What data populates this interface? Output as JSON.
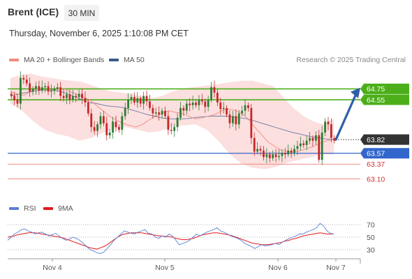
{
  "header": {
    "instrument": "Brent (ICE)",
    "timeframe": "30 MIN",
    "timestamp": "Thursday, November 6, 2025 1:10:08 PM CET"
  },
  "legend": {
    "ma20": {
      "label": "MA 20 + Bollinger Bands",
      "color": "#f28b82"
    },
    "ma50": {
      "label": "MA 50",
      "color": "#3a5a8c"
    },
    "rsi": {
      "label": "RSI",
      "color": "#5b7fd6"
    },
    "ma9": {
      "label": "9MA",
      "color": "#e31a1c"
    }
  },
  "credit": "Research © 2025 Trading Central",
  "chart_data": [
    {
      "type": "candlestick",
      "ylim": [
        62.8,
        65.1
      ],
      "x_ticks": [
        "Nov 4",
        "Nov 5",
        "Nov 6",
        "Nov 7"
      ],
      "colors": {
        "up": "#2e7d32",
        "down": "#c62828",
        "band_fill": "#fcd9d9",
        "resistance": "#4caf1a",
        "support": "#3366cc",
        "target": "#f28b82",
        "arrow": "#2f5fa8"
      },
      "last_price": {
        "value": "63.82",
        "color": "#333333"
      },
      "levels": [
        {
          "value": "64.75",
          "kind": "resistance"
        },
        {
          "value": "64.55",
          "kind": "resistance"
        },
        {
          "value": "63.57",
          "kind": "pivot"
        },
        {
          "value": "63.37",
          "kind": "target"
        },
        {
          "value": "63.10",
          "kind": "target"
        }
      ],
      "candles_close": [
        64.62,
        64.55,
        64.48,
        64.95,
        64.92,
        64.85,
        64.7,
        64.75,
        64.8,
        64.72,
        64.78,
        64.8,
        64.7,
        64.72,
        64.75,
        64.78,
        64.62,
        64.58,
        64.65,
        64.55,
        64.62,
        64.6,
        64.66,
        64.58,
        64.5,
        64.3,
        64.05,
        63.98,
        64.1,
        64.25,
        64.12,
        63.9,
        63.95,
        64.15,
        64.05,
        64.0,
        64.25,
        64.4,
        64.55,
        64.6,
        64.5,
        64.58,
        64.48,
        64.62,
        64.52,
        64.4,
        64.3,
        64.32,
        64.28,
        64.35,
        64.25,
        64.0,
        63.98,
        64.05,
        64.22,
        64.4,
        64.35,
        64.48,
        64.45,
        64.5,
        64.45,
        64.55,
        64.52,
        64.42,
        64.55,
        64.78,
        64.68,
        64.5,
        64.38,
        64.4,
        64.28,
        64.12,
        64.25,
        64.1,
        64.3,
        64.35,
        64.45,
        64.4,
        63.85,
        63.6,
        63.65,
        63.62,
        63.5,
        63.55,
        63.48,
        63.55,
        63.5,
        63.52,
        63.58,
        63.55,
        63.62,
        63.58,
        63.65,
        63.7,
        63.75,
        63.72,
        63.8,
        63.85,
        63.8,
        63.9,
        63.45,
        63.95,
        64.15,
        64.1,
        63.85,
        63.8
      ],
      "ma20": [
        64.7,
        64.66,
        64.63,
        64.7,
        64.75,
        64.73,
        64.72,
        64.74,
        64.76,
        64.7,
        64.65,
        64.6,
        64.55,
        64.45,
        64.35,
        64.25,
        64.18,
        64.12,
        64.08,
        64.05,
        64.1,
        64.18,
        64.25,
        64.3,
        64.35,
        64.32,
        64.3,
        64.25,
        64.2,
        64.22,
        64.25,
        64.28,
        64.35,
        64.38,
        64.36,
        64.3,
        64.2,
        64.05,
        63.92,
        63.78,
        63.7,
        63.63,
        63.6,
        63.6,
        63.62,
        63.66,
        63.7,
        63.76,
        63.8,
        63.82
      ],
      "ma50": [
        64.62,
        64.65,
        64.68,
        64.7,
        64.72,
        64.73,
        64.72,
        64.7,
        64.66,
        64.6,
        64.55,
        64.5,
        64.48,
        64.45,
        64.43,
        64.42,
        64.4,
        64.36,
        64.32,
        64.28,
        64.25,
        64.22,
        64.2,
        64.2,
        64.2,
        64.21,
        64.23,
        64.24,
        64.25,
        64.25,
        64.25,
        64.24,
        64.22,
        64.2,
        64.16,
        64.12,
        64.08,
        64.04,
        64.0,
        63.96,
        63.93,
        63.9,
        63.87,
        63.85,
        63.83,
        63.82
      ],
      "bb_upper": [
        64.95,
        65.0,
        65.03,
        64.98,
        64.95,
        64.92,
        64.9,
        64.88,
        64.82,
        64.75,
        64.7,
        64.68,
        64.65,
        64.6,
        64.58,
        64.62,
        64.7,
        64.75,
        64.78,
        64.8,
        64.82,
        64.85,
        64.88,
        64.9,
        64.9,
        64.85,
        64.8,
        64.6,
        64.4,
        64.25,
        64.15,
        64.1,
        64.2
      ],
      "bb_lower": [
        64.48,
        64.35,
        64.15,
        64.0,
        63.92,
        63.88,
        63.8,
        63.85,
        63.95,
        64.02,
        64.05,
        64.0,
        63.95,
        63.98,
        64.05,
        64.08,
        64.1,
        64.0,
        63.8,
        63.55,
        63.38,
        63.3,
        63.28,
        63.32,
        63.4,
        63.45,
        63.5,
        63.55,
        63.55
      ]
    },
    {
      "type": "line",
      "name": "RSI",
      "y_ticks": [
        "70",
        "50",
        "30"
      ],
      "ylim": [
        20,
        80
      ],
      "rsi": [
        45,
        50,
        55,
        58,
        62,
        63,
        60,
        58,
        55,
        57,
        58,
        55,
        52,
        54,
        56,
        52,
        48,
        45,
        47,
        50,
        48,
        45,
        40,
        35,
        30,
        28,
        25,
        24,
        26,
        32,
        38,
        45,
        50,
        55,
        60,
        58,
        56,
        55,
        58,
        60,
        62,
        56,
        55,
        50,
        48,
        52,
        50,
        55,
        52,
        45,
        38,
        40,
        42,
        45,
        50,
        55,
        52,
        55,
        58,
        60,
        62,
        65,
        60,
        58,
        55,
        52,
        50,
        48,
        45,
        40,
        38,
        35,
        32,
        35,
        38,
        36,
        37,
        38,
        40,
        38,
        42,
        45,
        48,
        50,
        52,
        55,
        55,
        58,
        60,
        62,
        65,
        72,
        68,
        60,
        56,
        55
      ],
      "ma9": [
        50,
        51,
        52,
        54,
        55,
        56,
        57,
        57,
        57,
        56,
        55,
        54,
        53,
        52,
        51,
        50,
        49,
        47,
        45,
        43,
        41,
        39,
        37,
        35,
        33,
        32,
        31,
        33,
        35,
        38,
        42,
        46,
        50,
        53,
        55,
        56,
        57,
        57,
        57,
        57,
        56,
        55,
        54,
        53,
        52,
        52,
        51,
        51,
        50,
        48,
        47,
        46,
        46,
        47,
        48,
        50,
        52,
        54,
        55,
        56,
        57,
        57,
        56,
        55,
        54,
        53,
        51,
        49,
        47,
        45,
        43,
        41,
        40,
        39,
        38,
        38,
        38,
        39,
        40,
        41,
        42,
        44,
        45,
        47,
        48,
        50,
        52,
        53,
        54,
        55,
        56,
        57,
        56,
        55,
        55,
        55
      ]
    }
  ]
}
